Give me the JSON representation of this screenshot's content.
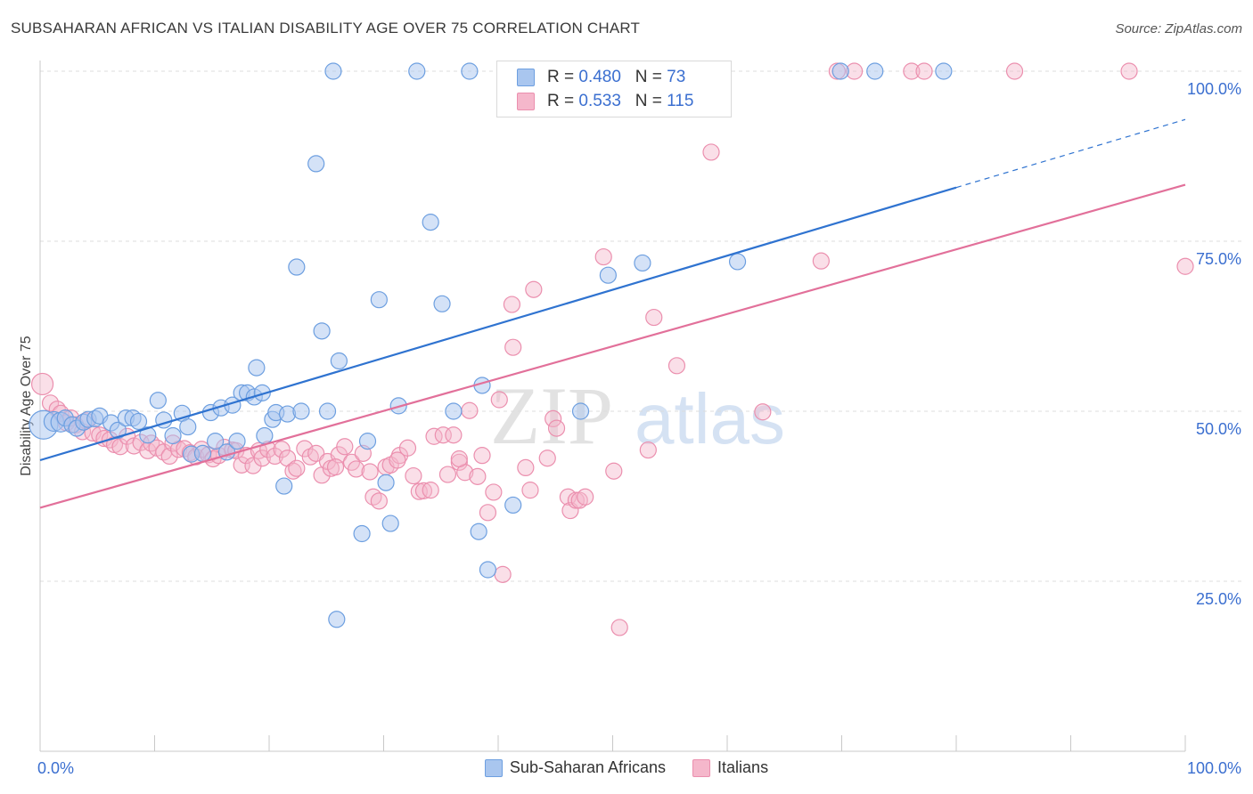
{
  "header": {
    "title": "SUBSAHARAN AFRICAN VS ITALIAN DISABILITY AGE OVER 75 CORRELATION CHART",
    "source": "Source: ZipAtlas.com"
  },
  "watermark": {
    "part1": "ZIP",
    "part2": "atlas"
  },
  "legend_top": {
    "rows": [
      {
        "r_label": "R = ",
        "r_value": "0.480",
        "n_label": "N = ",
        "n_value": "73"
      },
      {
        "r_label": "R = ",
        "r_value": "0.533",
        "n_label": "N = ",
        "n_value": "115"
      }
    ]
  },
  "legend_bottom": {
    "items": [
      "Sub-Saharan Africans",
      "Italians"
    ]
  },
  "colors": {
    "blue_fill": "#a9c6ef",
    "blue_stroke": "#6d9fe0",
    "blue_line": "#2f73d0",
    "pink_fill": "#f5b7cb",
    "pink_stroke": "#eb8fae",
    "pink_line": "#e2709a",
    "grid": "#dcdcdc",
    "tick_label": "#3b6fd0"
  },
  "chart_data": {
    "type": "scatter",
    "title": "SUBSAHARAN AFRICAN VS ITALIAN DISABILITY AGE OVER 75 CORRELATION CHART",
    "xlabel": "",
    "ylabel": "Disability Age Over 75",
    "xlim": [
      0,
      100
    ],
    "ylim": [
      0,
      100
    ],
    "x_tick_labels": [
      "0.0%",
      "100.0%"
    ],
    "y_tick_labels": [
      "25.0%",
      "50.0%",
      "75.0%",
      "100.0%"
    ],
    "y_ticks": [
      25,
      50,
      75,
      100
    ],
    "grid": true,
    "legend_position": "top-center",
    "series": [
      {
        "name": "Sub-Saharan Africans",
        "r": 0.48,
        "n": 73,
        "trend": {
          "x": [
            0,
            80
          ],
          "y": [
            42.8,
            82.9
          ],
          "dashed_to": [
            100,
            92.9
          ]
        },
        "points": [
          [
            0.3,
            48
          ],
          [
            1.2,
            48.5
          ],
          [
            1.8,
            48.4
          ],
          [
            2.2,
            49
          ],
          [
            2.8,
            48
          ],
          [
            3.2,
            47.5
          ],
          [
            3.8,
            48.4
          ],
          [
            4.2,
            48.8
          ],
          [
            4.8,
            48.9
          ],
          [
            5.2,
            49.3
          ],
          [
            6.2,
            48.3
          ],
          [
            6.8,
            47.2
          ],
          [
            7.5,
            49
          ],
          [
            8.1,
            49
          ],
          [
            8.6,
            48.5
          ],
          [
            9.4,
            46.5
          ],
          [
            10.3,
            51.6
          ],
          [
            10.8,
            48.7
          ],
          [
            11.6,
            46.4
          ],
          [
            12.4,
            49.7
          ],
          [
            12.9,
            47.7
          ],
          [
            13.2,
            43.7
          ],
          [
            14.2,
            43.8
          ],
          [
            14.9,
            49.8
          ],
          [
            15.3,
            45.6
          ],
          [
            15.8,
            50.5
          ],
          [
            16.3,
            44
          ],
          [
            16.8,
            50.9
          ],
          [
            17.2,
            45.6
          ],
          [
            17.6,
            52.7
          ],
          [
            18.1,
            52.7
          ],
          [
            18.7,
            52.1
          ],
          [
            18.9,
            56.4
          ],
          [
            19.4,
            52.7
          ],
          [
            19.6,
            46.4
          ],
          [
            20.3,
            48.8
          ],
          [
            20.6,
            49.8
          ],
          [
            21.3,
            39
          ],
          [
            21.6,
            49.6
          ],
          [
            22.4,
            71.2
          ],
          [
            22.8,
            50
          ],
          [
            24.1,
            86.4
          ],
          [
            24.6,
            61.8
          ],
          [
            25.1,
            50
          ],
          [
            25.6,
            100
          ],
          [
            25.9,
            19.4
          ],
          [
            26.1,
            57.4
          ],
          [
            28.1,
            32
          ],
          [
            28.6,
            45.6
          ],
          [
            29.6,
            66.4
          ],
          [
            30.2,
            39.5
          ],
          [
            30.6,
            33.5
          ],
          [
            31.3,
            50.8
          ],
          [
            32.9,
            100
          ],
          [
            34.1,
            77.8
          ],
          [
            35.1,
            65.8
          ],
          [
            36.1,
            50
          ],
          [
            37.5,
            100
          ],
          [
            38.3,
            32.3
          ],
          [
            38.6,
            53.8
          ],
          [
            39.1,
            26.7
          ],
          [
            41.3,
            36.2
          ],
          [
            43.1,
            100
          ],
          [
            47.2,
            50
          ],
          [
            49.1,
            100
          ],
          [
            49.6,
            70
          ],
          [
            52.6,
            71.8
          ],
          [
            57.9,
            100
          ],
          [
            59.3,
            100
          ],
          [
            60.9,
            72
          ],
          [
            69.9,
            100
          ],
          [
            72.9,
            100
          ],
          [
            78.9,
            100
          ]
        ]
      },
      {
        "name": "Italians",
        "r": 0.533,
        "n": 115,
        "trend": {
          "x": [
            0,
            100
          ],
          "y": [
            35.8,
            83.3
          ]
        },
        "points": [
          [
            0.2,
            54
          ],
          [
            0.9,
            51.2
          ],
          [
            1.5,
            50.3
          ],
          [
            1.8,
            49.7
          ],
          [
            2.3,
            48.3
          ],
          [
            2.7,
            49
          ],
          [
            3.1,
            48
          ],
          [
            3.7,
            47
          ],
          [
            4,
            48.6
          ],
          [
            4.6,
            46.8
          ],
          [
            5.2,
            46.5
          ],
          [
            5.6,
            46
          ],
          [
            6.1,
            45.8
          ],
          [
            6.5,
            45.1
          ],
          [
            7,
            44.8
          ],
          [
            7.6,
            46.3
          ],
          [
            8.2,
            44.9
          ],
          [
            8.8,
            45.4
          ],
          [
            9.4,
            44.2
          ],
          [
            9.7,
            45.3
          ],
          [
            10.2,
            44.6
          ],
          [
            10.8,
            44
          ],
          [
            11.3,
            43.4
          ],
          [
            11.6,
            45.3
          ],
          [
            12.1,
            44.4
          ],
          [
            12.6,
            44.5
          ],
          [
            13.1,
            43.9
          ],
          [
            13.6,
            43.3
          ],
          [
            14.1,
            44.4
          ],
          [
            14.7,
            43.6
          ],
          [
            15.1,
            43
          ],
          [
            15.6,
            43.5
          ],
          [
            16.1,
            44.7
          ],
          [
            16.8,
            44.3
          ],
          [
            17.1,
            44.2
          ],
          [
            17.6,
            42.1
          ],
          [
            18,
            43.5
          ],
          [
            18.6,
            42
          ],
          [
            19.1,
            44.2
          ],
          [
            19.4,
            43.1
          ],
          [
            19.9,
            44.4
          ],
          [
            20.5,
            43.4
          ],
          [
            21.1,
            44.4
          ],
          [
            21.6,
            43.1
          ],
          [
            22.1,
            41.2
          ],
          [
            22.4,
            41.6
          ],
          [
            23.1,
            44.5
          ],
          [
            23.6,
            43.3
          ],
          [
            24.1,
            43.8
          ],
          [
            24.6,
            40.6
          ],
          [
            25.1,
            42.6
          ],
          [
            25.4,
            41.6
          ],
          [
            26.1,
            43.6
          ],
          [
            26.6,
            44.8
          ],
          [
            27.2,
            42.5
          ],
          [
            27.6,
            41.5
          ],
          [
            28.2,
            43.8
          ],
          [
            28.8,
            41.1
          ],
          [
            29.1,
            37.4
          ],
          [
            29.6,
            36.8
          ],
          [
            30.2,
            41.8
          ],
          [
            30.6,
            42.1
          ],
          [
            31.4,
            43.5
          ],
          [
            32.1,
            44.6
          ],
          [
            32.6,
            40.5
          ],
          [
            33.1,
            38.2
          ],
          [
            33.5,
            38.3
          ],
          [
            34.1,
            38.4
          ],
          [
            34.4,
            46.3
          ],
          [
            35.2,
            46.5
          ],
          [
            35.6,
            40.7
          ],
          [
            36.1,
            46.5
          ],
          [
            36.6,
            42.5
          ],
          [
            37.1,
            41
          ],
          [
            37.5,
            50.1
          ],
          [
            38.2,
            40.4
          ],
          [
            38.6,
            43.5
          ],
          [
            39.1,
            35.1
          ],
          [
            39.6,
            38.1
          ],
          [
            40.1,
            51.7
          ],
          [
            40.4,
            26
          ],
          [
            41.3,
            59.4
          ],
          [
            41.2,
            65.7
          ],
          [
            42.4,
            41.7
          ],
          [
            42.8,
            38.4
          ],
          [
            43.1,
            67.9
          ],
          [
            44.3,
            43.1
          ],
          [
            44.8,
            48.9
          ],
          [
            45.1,
            47.5
          ],
          [
            46.1,
            37.4
          ],
          [
            46.3,
            35.4
          ],
          [
            46.8,
            36.9
          ],
          [
            47.1,
            36.9
          ],
          [
            47.6,
            37.4
          ],
          [
            49.2,
            72.7
          ],
          [
            50.1,
            41.2
          ],
          [
            50.6,
            18.2
          ],
          [
            53.1,
            44.3
          ],
          [
            53.1,
            100
          ],
          [
            53.6,
            63.8
          ],
          [
            56.9,
            100
          ],
          [
            55.6,
            56.7
          ],
          [
            58.6,
            88.1
          ],
          [
            63.1,
            49.9
          ],
          [
            68.2,
            72.1
          ],
          [
            69.6,
            100
          ],
          [
            71.1,
            100
          ],
          [
            76.1,
            100
          ],
          [
            77.2,
            100
          ],
          [
            85.1,
            100
          ],
          [
            95.1,
            100
          ],
          [
            100,
            71.3
          ],
          [
            36.6,
            43
          ],
          [
            25.8,
            41.8
          ],
          [
            31.2,
            42.8
          ]
        ]
      }
    ]
  }
}
